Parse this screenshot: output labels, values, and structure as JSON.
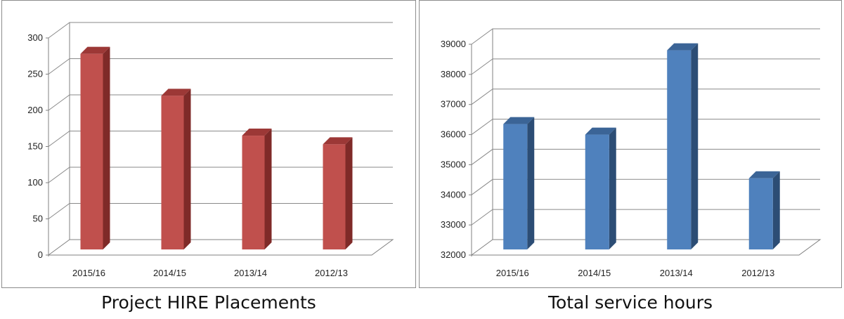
{
  "chart_data": [
    {
      "type": "bar",
      "title": "Project HIRE Placements",
      "categories": [
        "2015/16",
        "2014/15",
        "2013/14",
        "2012/13"
      ],
      "values": [
        278,
        220,
        165,
        153
      ],
      "ylim": [
        0,
        300
      ],
      "yticks": [
        "0",
        "50",
        "100",
        "150",
        "200",
        "250",
        "300"
      ],
      "grid": true,
      "style": "3d-column",
      "colors": {
        "front": "#c0504d",
        "side": "#7f2a28",
        "top": "#9c3836"
      }
    },
    {
      "type": "bar",
      "title": "Total service hours",
      "categories": [
        "2015/16",
        "2014/15",
        "2013/14",
        "2012/13"
      ],
      "values": [
        36350,
        36000,
        38800,
        34550
      ],
      "ylim": [
        32000,
        39000
      ],
      "yticks": [
        "32000",
        "33000",
        "34000",
        "35000",
        "36000",
        "37000",
        "38000",
        "39000"
      ],
      "grid": true,
      "style": "3d-column",
      "colors": {
        "front": "#4f81bd",
        "side": "#2c4d75",
        "top": "#3b6496"
      }
    }
  ]
}
